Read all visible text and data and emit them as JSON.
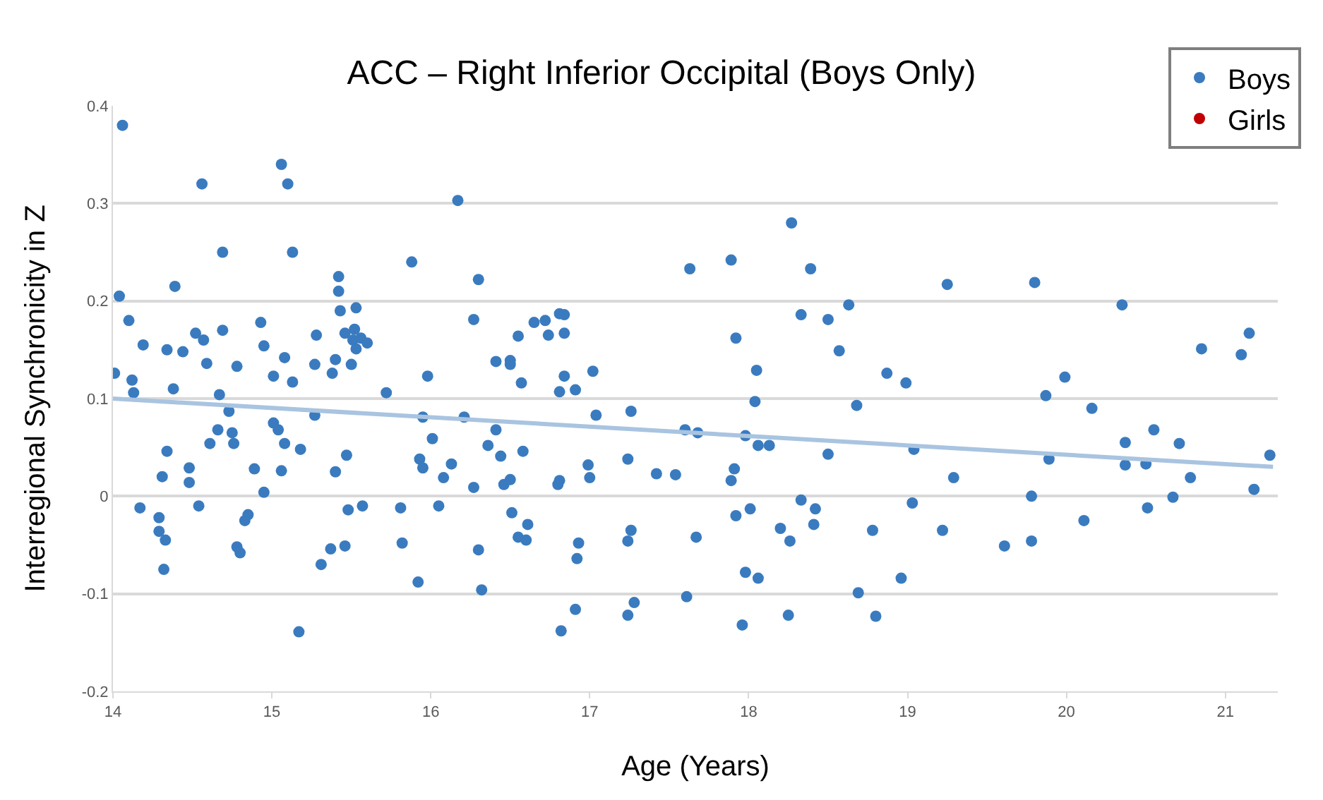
{
  "chart_data": {
    "type": "scatter",
    "title": "ACC – Right Inferior Occipital (Boys Only)",
    "xlabel": "Age (Years)",
    "ylabel": "Interregional Synchronicity in Z",
    "xlim": [
      14,
      21.33
    ],
    "xticks": [
      14,
      15,
      16,
      17,
      18,
      19,
      20,
      21
    ],
    "ylim": [
      -0.2,
      0.4
    ],
    "yticks": [
      -0.2,
      -0.1,
      0,
      0.1,
      0.2,
      0.3,
      0.4
    ],
    "grid": "y",
    "legend": "top right",
    "marker": "circle",
    "series": [
      {
        "name": "Boys",
        "color": "#3a7bbf",
        "x": [
          14.06,
          14.56,
          15.06,
          15.1,
          14.69,
          15.13,
          15.88,
          14.04,
          14.39,
          14.1,
          14.19,
          14.34,
          14.44,
          14.52,
          14.57,
          14.69,
          14.59,
          14.78,
          14.93,
          14.95,
          15.08,
          15.01,
          15.13,
          15.27,
          15.28,
          15.38,
          15.4,
          15.5,
          15.42,
          15.42,
          15.43,
          15.53,
          15.46,
          15.52,
          15.51,
          15.56,
          15.6,
          15.53,
          14.01,
          14.12,
          14.13,
          14.38,
          14.67,
          15.72,
          14.73,
          15.27,
          14.66,
          14.75,
          14.76,
          14.61,
          15.01,
          15.04,
          15.08,
          15.18,
          14.34,
          14.48,
          14.48,
          14.31,
          14.89,
          15.06,
          14.95,
          15.4,
          15.47,
          14.17,
          14.54,
          14.29,
          14.29,
          14.33,
          14.32,
          14.85,
          14.83,
          14.78,
          14.8,
          15.31,
          15.37,
          15.46,
          15.48,
          15.57,
          15.81,
          15.82,
          15.92,
          15.17,
          16.17,
          16.3,
          16.27,
          16.65,
          16.72,
          16.81,
          16.84,
          16.74,
          16.84,
          16.55,
          16.41,
          16.5,
          16.5,
          16.57,
          15.98,
          16.84,
          16.81,
          16.91,
          17.02,
          15.95,
          16.21,
          17.04,
          17.26,
          16.01,
          16.41,
          16.36,
          16.44,
          16.58,
          15.93,
          15.95,
          16.13,
          16.08,
          16.27,
          16.46,
          16.5,
          16.81,
          16.8,
          16.99,
          17,
          17.24,
          17.42,
          17.54,
          17.6,
          17.68,
          17.63,
          16.05,
          16.51,
          16.61,
          16.55,
          16.6,
          16.3,
          16.93,
          16.92,
          17.26,
          17.24,
          17.67,
          16.32,
          16.91,
          16.82,
          17.28,
          17.24,
          17.61,
          18.27,
          17.89,
          18.39,
          19.25,
          18.63,
          18.33,
          18.5,
          17.92,
          18.57,
          18.05,
          18.87,
          18.99,
          18.04,
          18.68,
          17.98,
          18.06,
          18.13,
          18.5,
          19.04,
          19.29,
          17.91,
          17.89,
          18.33,
          18.42,
          18.01,
          17.92,
          19.03,
          18.2,
          18.41,
          18.26,
          18.78,
          19.22,
          19.61,
          17.98,
          18.06,
          18.96,
          18.69,
          17.96,
          18.25,
          18.8,
          19.8,
          20.35,
          21.15,
          20.85,
          21.1,
          19.99,
          19.87,
          20.16,
          20.55,
          20.37,
          20.71,
          19.89,
          20.37,
          20.5,
          21.28,
          20.78,
          21.18,
          19.78,
          20.67,
          20.51,
          20.11,
          19.78
        ],
        "values": [
          0.38,
          0.32,
          0.34,
          0.32,
          0.25,
          0.25,
          0.24,
          0.205,
          0.215,
          0.18,
          0.155,
          0.15,
          0.148,
          0.167,
          0.16,
          0.17,
          0.136,
          0.133,
          0.178,
          0.154,
          0.142,
          0.123,
          0.117,
          0.135,
          0.165,
          0.126,
          0.14,
          0.135,
          0.225,
          0.21,
          0.19,
          0.193,
          0.167,
          0.171,
          0.16,
          0.162,
          0.157,
          0.151,
          0.126,
          0.119,
          0.106,
          0.11,
          0.104,
          0.106,
          0.087,
          0.083,
          0.068,
          0.065,
          0.054,
          0.054,
          0.075,
          0.068,
          0.054,
          0.048,
          0.046,
          0.029,
          0.014,
          0.02,
          0.028,
          0.026,
          0.004,
          0.025,
          0.042,
          -0.012,
          -0.01,
          -0.022,
          -0.036,
          -0.045,
          -0.075,
          -0.019,
          -0.025,
          -0.052,
          -0.058,
          -0.07,
          -0.054,
          -0.051,
          -0.014,
          -0.01,
          -0.012,
          -0.048,
          -0.088,
          -0.139,
          0.303,
          0.222,
          0.181,
          0.178,
          0.18,
          0.187,
          0.186,
          0.165,
          0.167,
          0.164,
          0.138,
          0.139,
          0.135,
          0.116,
          0.123,
          0.123,
          0.107,
          0.109,
          0.128,
          0.081,
          0.081,
          0.083,
          0.087,
          0.059,
          0.068,
          0.052,
          0.041,
          0.046,
          0.038,
          0.029,
          0.033,
          0.019,
          0.009,
          0.012,
          0.017,
          0.016,
          0.012,
          0.032,
          0.019,
          0.038,
          0.023,
          0.022,
          0.068,
          0.065,
          0.233,
          -0.01,
          -0.017,
          -0.029,
          -0.042,
          -0.045,
          -0.055,
          -0.048,
          -0.064,
          -0.035,
          -0.046,
          -0.042,
          -0.096,
          -0.116,
          -0.138,
          -0.109,
          -0.122,
          -0.103,
          0.28,
          0.242,
          0.233,
          0.217,
          0.196,
          0.186,
          0.181,
          0.162,
          0.149,
          0.129,
          0.126,
          0.116,
          0.097,
          0.093,
          0.062,
          0.052,
          0.052,
          0.043,
          0.048,
          0.019,
          0.028,
          0.016,
          -0.004,
          -0.013,
          -0.013,
          -0.02,
          -0.007,
          -0.033,
          -0.029,
          -0.046,
          -0.035,
          -0.035,
          -0.051,
          -0.078,
          -0.084,
          -0.084,
          -0.099,
          -0.132,
          -0.122,
          -0.123,
          0.219,
          0.196,
          0.167,
          0.151,
          0.145,
          0.122,
          0.103,
          0.09,
          0.068,
          0.055,
          0.054,
          0.038,
          0.032,
          0.033,
          0.042,
          0.019,
          0.007,
          0,
          -0.001,
          -0.012,
          -0.025,
          -0.046
        ]
      },
      {
        "name": "Girls",
        "color": "#c00000"
      },
      {
        "type": "line",
        "marker": "none",
        "color": "#a9c4e0",
        "x": [
          14,
          21.3
        ],
        "values": [
          0.1,
          0.03
        ]
      }
    ]
  }
}
